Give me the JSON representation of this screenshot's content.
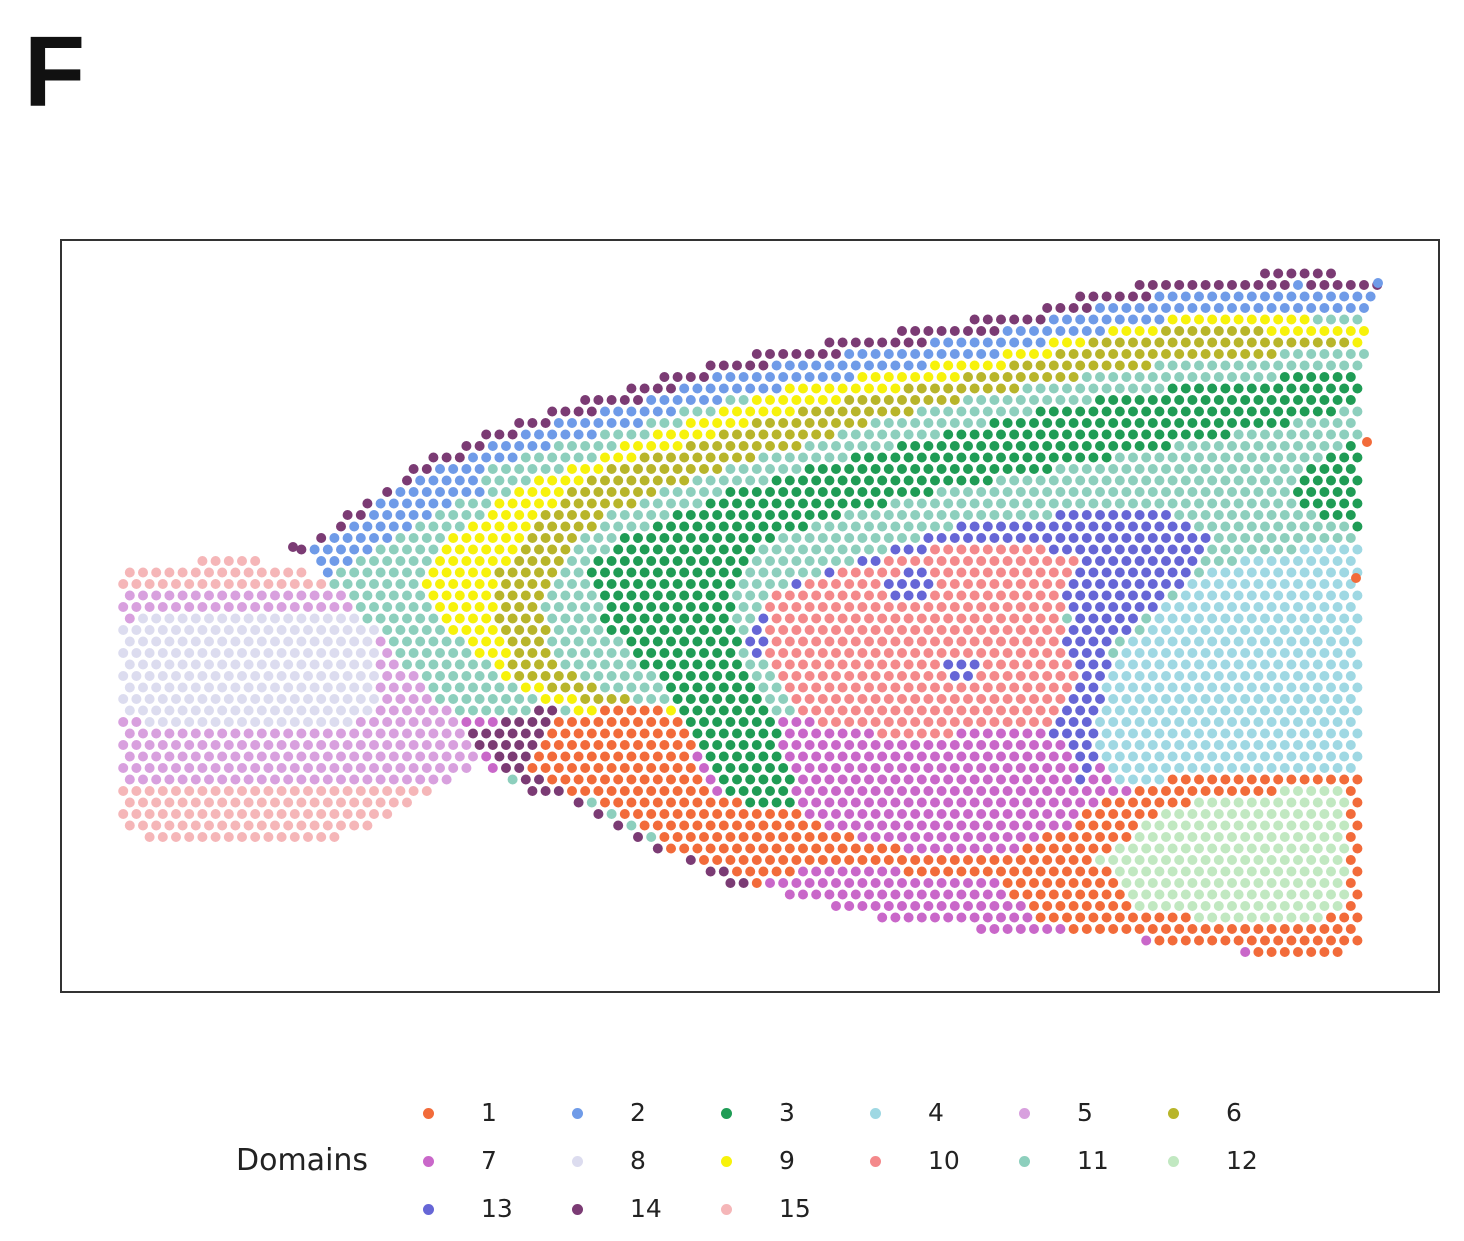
{
  "panel_label": "F",
  "legend": {
    "title": "Domains",
    "items": [
      {
        "label": "1",
        "color": "#f26b3a"
      },
      {
        "label": "2",
        "color": "#6f9be8"
      },
      {
        "label": "3",
        "color": "#1f9c55"
      },
      {
        "label": "4",
        "color": "#9fd8e3"
      },
      {
        "label": "5",
        "color": "#d8a0de"
      },
      {
        "label": "6",
        "color": "#b8b52a"
      },
      {
        "label": "7",
        "color": "#c967c9"
      },
      {
        "label": "8",
        "color": "#dcdcef"
      },
      {
        "label": "9",
        "color": "#f7f20b"
      },
      {
        "label": "10",
        "color": "#f4898b"
      },
      {
        "label": "11",
        "color": "#8dcfbd"
      },
      {
        "label": "12",
        "color": "#c1e8c1"
      },
      {
        "label": "13",
        "color": "#6666d6"
      },
      {
        "label": "14",
        "color": "#7b3b74"
      },
      {
        "label": "15",
        "color": "#f5b6b8"
      }
    ]
  },
  "chart_data": {
    "type": "scatter",
    "title": "",
    "xlabel": "",
    "ylabel": "",
    "axes_visible": false,
    "grid": false,
    "legend_position": "bottom",
    "legend_title": "Domains",
    "series": [
      {
        "name": "1",
        "color": "#f26b3a"
      },
      {
        "name": "2",
        "color": "#6f9be8"
      },
      {
        "name": "3",
        "color": "#1f9c55"
      },
      {
        "name": "4",
        "color": "#9fd8e3"
      },
      {
        "name": "5",
        "color": "#d8a0de"
      },
      {
        "name": "6",
        "color": "#b8b52a"
      },
      {
        "name": "7",
        "color": "#c967c9"
      },
      {
        "name": "8",
        "color": "#dcdcef"
      },
      {
        "name": "9",
        "color": "#f7f20b"
      },
      {
        "name": "10",
        "color": "#f4898b"
      },
      {
        "name": "11",
        "color": "#8dcfbd"
      },
      {
        "name": "12",
        "color": "#c1e8c1"
      },
      {
        "name": "13",
        "color": "#6666d6"
      },
      {
        "name": "14",
        "color": "#7b3b74"
      },
      {
        "name": "15",
        "color": "#f5b6b8"
      }
    ],
    "note": "Spatial spots on a hexagonal grid colored by domain (brain section)"
  }
}
